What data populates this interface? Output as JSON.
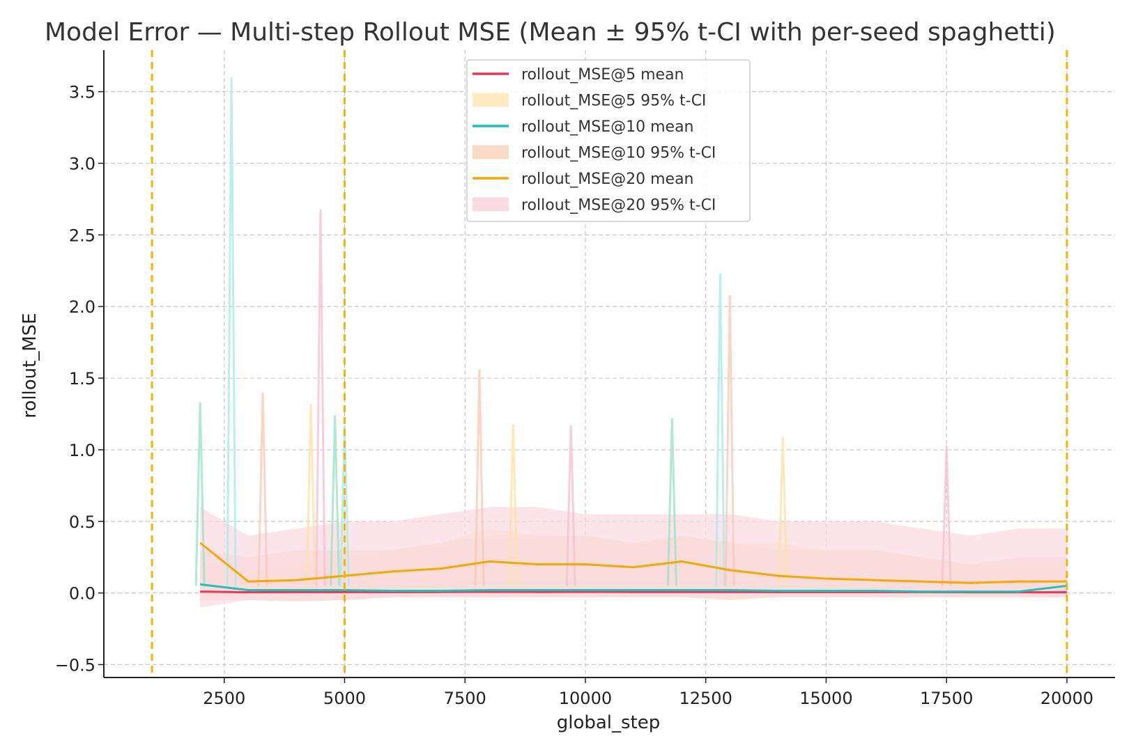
{
  "chart_data": {
    "type": "line",
    "title": "Model Error — Multi-step Rollout MSE (Mean ± 95% t-CI with per-seed spaghetti)",
    "xlabel": "global_step",
    "ylabel": "rollout_MSE",
    "xlim": [
      0,
      21000
    ],
    "ylim": [
      -0.59,
      3.79
    ],
    "xticks": [
      2500,
      5000,
      7500,
      10000,
      12500,
      15000,
      17500,
      20000
    ],
    "xtick_labels": [
      "2500",
      "5000",
      "7500",
      "10000",
      "12500",
      "15000",
      "17500",
      "20000"
    ],
    "yticks": [
      -0.5,
      0.0,
      0.5,
      1.0,
      1.5,
      2.0,
      2.5,
      3.0,
      3.5
    ],
    "ytick_labels": [
      "−0.5",
      "0.0",
      "0.5",
      "1.0",
      "1.5",
      "2.0",
      "2.5",
      "3.0",
      "3.5"
    ],
    "grid": true,
    "legend_position": "upper center",
    "vlines": {
      "x": [
        1000,
        5000,
        20000
      ],
      "color": "#f4b400",
      "style": "dashed"
    },
    "x": [
      2000,
      3000,
      4000,
      5000,
      6000,
      7000,
      8000,
      9000,
      10000,
      11000,
      12000,
      13000,
      14000,
      15000,
      16000,
      17000,
      18000,
      19000,
      20000
    ],
    "series": [
      {
        "name": "rollout_MSE@5 mean",
        "color": "#e8365d",
        "kind": "mean",
        "values": [
          0.01,
          0.005,
          0.006,
          0.006,
          0.006,
          0.007,
          0.008,
          0.007,
          0.008,
          0.007,
          0.007,
          0.007,
          0.006,
          0.006,
          0.006,
          0.006,
          0.005,
          0.005,
          0.005
        ]
      },
      {
        "name": "rollout_MSE@5 95% t-CI",
        "color": "#fdebc2",
        "kind": "band",
        "lower": [
          -0.03,
          -0.02,
          -0.02,
          -0.02,
          -0.02,
          -0.02,
          -0.02,
          -0.02,
          -0.02,
          -0.02,
          -0.02,
          -0.02,
          -0.02,
          -0.02,
          -0.02,
          -0.02,
          -0.02,
          -0.02,
          -0.02
        ],
        "upper": [
          0.2,
          0.15,
          0.2,
          0.25,
          0.3,
          0.35,
          0.45,
          0.4,
          0.4,
          0.35,
          0.4,
          0.35,
          0.35,
          0.3,
          0.3,
          0.25,
          0.2,
          0.2,
          0.2
        ]
      },
      {
        "name": "rollout_MSE@10 mean",
        "color": "#1bc4b8",
        "kind": "mean",
        "values": [
          0.06,
          0.02,
          0.02,
          0.02,
          0.015,
          0.015,
          0.02,
          0.02,
          0.02,
          0.02,
          0.02,
          0.02,
          0.015,
          0.015,
          0.015,
          0.01,
          0.01,
          0.01,
          0.05
        ]
      },
      {
        "name": "rollout_MSE@10 95% t-CI",
        "color": "#f9d9c7",
        "kind": "band",
        "lower": [
          -0.05,
          -0.05,
          -0.06,
          -0.05,
          -0.03,
          -0.03,
          -0.03,
          -0.03,
          -0.03,
          -0.03,
          -0.03,
          -0.05,
          -0.03,
          -0.03,
          -0.03,
          -0.03,
          -0.03,
          -0.03,
          -0.03
        ],
        "upper": [
          0.3,
          0.25,
          0.3,
          0.3,
          0.3,
          0.35,
          0.4,
          0.4,
          0.4,
          0.35,
          0.4,
          0.35,
          0.3,
          0.3,
          0.3,
          0.25,
          0.2,
          0.25,
          0.25
        ]
      },
      {
        "name": "rollout_MSE@20 mean",
        "color": "#f5a800",
        "kind": "mean",
        "values": [
          0.35,
          0.08,
          0.09,
          0.12,
          0.15,
          0.17,
          0.22,
          0.2,
          0.2,
          0.18,
          0.22,
          0.16,
          0.12,
          0.1,
          0.09,
          0.08,
          0.07,
          0.08,
          0.08
        ]
      },
      {
        "name": "rollout_MSE@20 95% t-CI",
        "color": "#fadbe3",
        "kind": "band",
        "lower": [
          -0.1,
          -0.05,
          -0.05,
          -0.05,
          -0.03,
          -0.03,
          -0.03,
          -0.03,
          -0.03,
          -0.03,
          -0.03,
          -0.03,
          -0.03,
          -0.03,
          -0.03,
          -0.03,
          -0.03,
          -0.03,
          -0.03
        ],
        "upper": [
          0.6,
          0.4,
          0.45,
          0.5,
          0.5,
          0.55,
          0.6,
          0.6,
          0.55,
          0.55,
          0.55,
          0.55,
          0.5,
          0.5,
          0.5,
          0.45,
          0.4,
          0.45,
          0.45
        ]
      }
    ],
    "spaghetti_spikes": [
      {
        "x": 2000,
        "y": 1.33
      },
      {
        "x": 2650,
        "y": 3.6
      },
      {
        "x": 3300,
        "y": 1.4
      },
      {
        "x": 4300,
        "y": 1.32
      },
      {
        "x": 4500,
        "y": 2.68
      },
      {
        "x": 4800,
        "y": 1.24
      },
      {
        "x": 5000,
        "y": 1.17
      },
      {
        "x": 7800,
        "y": 1.56
      },
      {
        "x": 8500,
        "y": 1.18
      },
      {
        "x": 9700,
        "y": 1.17
      },
      {
        "x": 11800,
        "y": 1.22
      },
      {
        "x": 12800,
        "y": 2.23
      },
      {
        "x": 13000,
        "y": 2.08
      },
      {
        "x": 14100,
        "y": 1.09
      },
      {
        "x": 17500,
        "y": 1.03
      }
    ]
  }
}
